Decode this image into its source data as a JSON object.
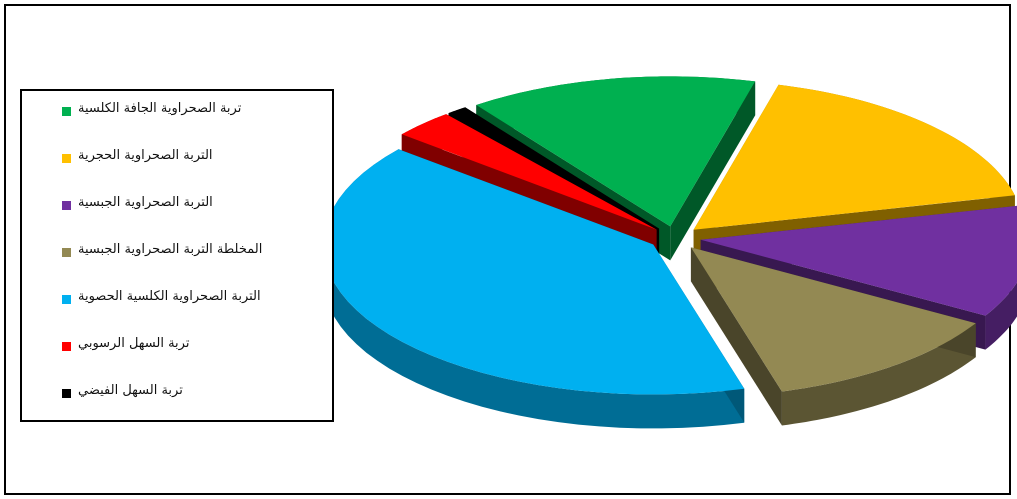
{
  "chart_data": {
    "type": "pie",
    "style": "3d-exploded",
    "legend_position": "left",
    "slices": [
      {
        "label": "تربة الصحراوية الجافة الكلسية",
        "value": 14,
        "color": "#00b050"
      },
      {
        "label": "التربة الصحراوية الحجرية",
        "value": 17,
        "color": "#ffc000"
      },
      {
        "label": "التربة الصحراوية الجبسية",
        "value": 12,
        "color": "#7030a0"
      },
      {
        "label": "المخلطة التربة الصحراوية الجبسية",
        "value": 12,
        "color": "#938953"
      },
      {
        "label": "التربة الصحراوية الكلسية الحصوية",
        "value": 40,
        "color": "#00b0f0"
      },
      {
        "label": "تربة السهل الرسوبي",
        "value": 3,
        "color": "#ff0000"
      },
      {
        "label": "تربة السهل الفيضي",
        "value": 1,
        "color": "#000000"
      }
    ]
  }
}
